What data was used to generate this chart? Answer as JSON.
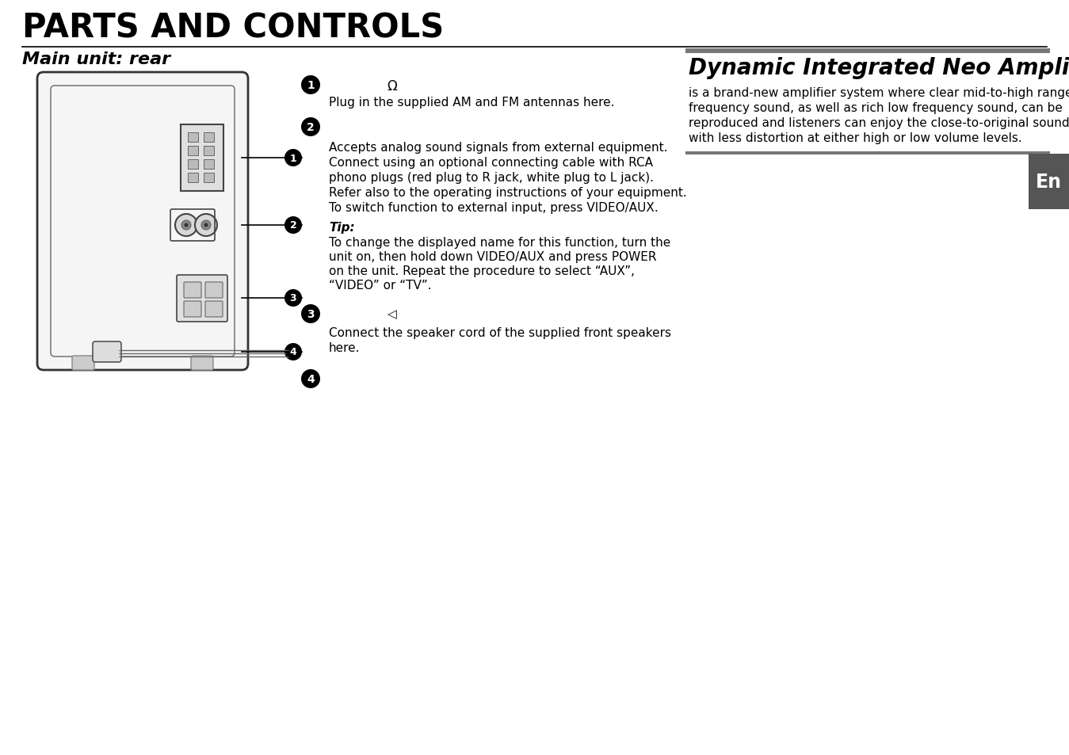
{
  "title": "PARTS AND CONTROLS",
  "subtitle": "Main unit: rear",
  "right_title": "Dynamic Integrated Neo Amplifier",
  "right_body_lines": [
    "is a brand-new amplifier system where clear mid-to-high range",
    "frequency sound, as well as rich low frequency sound, can be",
    "reproduced and listeners can enjoy the close-to-original sound",
    "with less distortion at either high or low volume levels."
  ],
  "en_label": "En",
  "s1_bullet": "1",
  "s1_omega": "Ω",
  "s1_text": "Plug in the supplied AM and FM antennas here.",
  "s2_bullet": "2",
  "s2_lines": [
    "Accepts analog sound signals from external equipment.",
    "Connect using an optional connecting cable with RCA",
    "phono plugs (red plug to R jack, white plug to L jack).",
    "Refer also to the operating instructions of your equipment.",
    "To switch function to external input, press VIDEO/AUX."
  ],
  "tip_label": "Tip:",
  "tip_lines": [
    "To change the displayed name for this function, turn the",
    "unit on, then hold down VIDEO/AUX and press POWER",
    "on the unit. Repeat the procedure to select “AUX”,",
    "“VIDEO” or “TV”."
  ],
  "s3_bullet": "3",
  "s3_speaker": "◁",
  "s3_lines": [
    "Connect the speaker cord of the supplied front speakers",
    "here."
  ],
  "s4_bullet": "4",
  "bg_color": "#ffffff",
  "text_color": "#000000",
  "en_bg": "#555555",
  "en_text_color": "#ffffff"
}
